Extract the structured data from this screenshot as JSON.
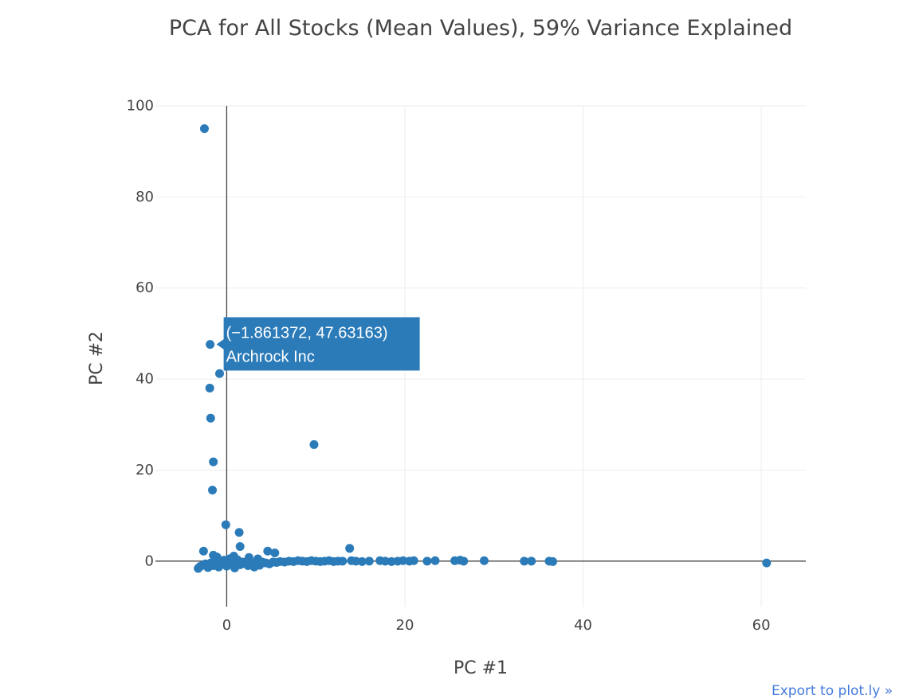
{
  "colors": {
    "marker": "#2b7bb9",
    "tooltip_bg": "#2b7bb9",
    "text": "#444444",
    "link": "#447adb"
  },
  "export_link": "Export to plot.ly »",
  "tooltip": {
    "coords": "(−1.861372, 47.63163)",
    "label": "Archrock Inc",
    "x": -1.861372,
    "y": 47.63163
  },
  "chart_data": {
    "type": "scatter",
    "title": "PCA for All Stocks (Mean Values), 59% Variance Explained",
    "xlabel": "PC #1",
    "ylabel": "PC #2",
    "xlim": [
      -8,
      65
    ],
    "ylim": [
      -10,
      100
    ],
    "xticks": [
      0,
      20,
      40,
      60
    ],
    "yticks": [
      0,
      20,
      40,
      60,
      80,
      100
    ],
    "grid": true,
    "zerolines": true,
    "legend": "none",
    "points": [
      [
        -2.5,
        95
      ],
      [
        -1.86,
        47.6
      ],
      [
        -0.8,
        41.2
      ],
      [
        -1.9,
        38
      ],
      [
        -1.8,
        31.4
      ],
      [
        -1.5,
        21.8
      ],
      [
        -1.6,
        15.6
      ],
      [
        -0.1,
        8
      ],
      [
        1.4,
        6.3
      ],
      [
        9.8,
        25.6
      ],
      [
        13.8,
        2.8
      ],
      [
        1.5,
        3.2
      ],
      [
        -2.6,
        2.2
      ],
      [
        4.6,
        2.2
      ],
      [
        5.4,
        1.8
      ],
      [
        -1.5,
        1.3
      ],
      [
        -1.1,
        0.9
      ],
      [
        0.8,
        1.1
      ],
      [
        2.5,
        0.8
      ],
      [
        3.5,
        0.5
      ],
      [
        -3.2,
        -1.6
      ],
      [
        -3.0,
        -1.2
      ],
      [
        -2.7,
        -0.9
      ],
      [
        -2.4,
        -0.6
      ],
      [
        -2.1,
        -1.4
      ],
      [
        -1.8,
        -0.4
      ],
      [
        -1.5,
        -1.0
      ],
      [
        -1.2,
        -0.2
      ],
      [
        -0.9,
        -1.3
      ],
      [
        -0.6,
        -0.7
      ],
      [
        -0.3,
        0.2
      ],
      [
        0.0,
        -1.1
      ],
      [
        0.3,
        0.5
      ],
      [
        0.6,
        -0.5
      ],
      [
        0.9,
        -1.5
      ],
      [
        1.2,
        0.3
      ],
      [
        1.5,
        -0.8
      ],
      [
        1.8,
        -0.2
      ],
      [
        2.1,
        -0.6
      ],
      [
        2.4,
        -1.0
      ],
      [
        2.8,
        -0.3
      ],
      [
        3.1,
        -1.3
      ],
      [
        3.4,
        -0.5
      ],
      [
        3.7,
        -0.9
      ],
      [
        4.0,
        -0.2
      ],
      [
        4.4,
        -0.4
      ],
      [
        4.8,
        -0.6
      ],
      [
        5.2,
        -0.2
      ],
      [
        5.6,
        -0.3
      ],
      [
        6.0,
        -0.1
      ],
      [
        6.5,
        -0.2
      ],
      [
        7.0,
        0.0
      ],
      [
        7.5,
        -0.1
      ],
      [
        8.0,
        0.1
      ],
      [
        8.5,
        0.0
      ],
      [
        9.0,
        -0.1
      ],
      [
        9.5,
        0.1
      ],
      [
        10.0,
        0.0
      ],
      [
        10.5,
        -0.1
      ],
      [
        11.0,
        0.0
      ],
      [
        11.5,
        0.1
      ],
      [
        12.0,
        -0.1
      ],
      [
        12.5,
        0.0
      ],
      [
        13.0,
        0.0
      ],
      [
        14.0,
        0.1
      ],
      [
        14.5,
        0.0
      ],
      [
        15.2,
        -0.1
      ],
      [
        16.0,
        0.0
      ],
      [
        17.2,
        0.1
      ],
      [
        17.8,
        0.0
      ],
      [
        18.5,
        -0.1
      ],
      [
        19.2,
        0.0
      ],
      [
        19.8,
        0.1
      ],
      [
        20.5,
        0.0
      ],
      [
        21.0,
        0.1
      ],
      [
        22.5,
        0.0
      ],
      [
        23.4,
        0.1
      ],
      [
        25.6,
        0.1
      ],
      [
        26.2,
        0.2
      ],
      [
        26.6,
        0.0
      ],
      [
        28.9,
        0.1
      ],
      [
        33.4,
        0.0
      ],
      [
        34.2,
        0.0
      ],
      [
        36.2,
        0.0
      ],
      [
        36.6,
        -0.1
      ],
      [
        60.6,
        -0.4
      ]
    ]
  }
}
